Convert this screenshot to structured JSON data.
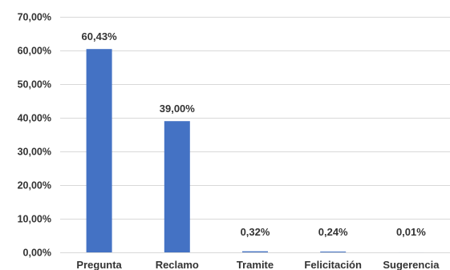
{
  "chart_data": {
    "type": "bar",
    "title": "",
    "xlabel": "",
    "ylabel": "",
    "categories": [
      "Pregunta",
      "Reclamo",
      "Tramite",
      "Felicitación",
      "Sugerencia"
    ],
    "values": [
      60.43,
      39.0,
      0.32,
      0.24,
      0.01
    ],
    "data_labels": [
      "60,43%",
      "39,00%",
      "0,32%",
      "0,24%",
      "0,01%"
    ],
    "ylim": [
      0,
      70
    ],
    "yticks": [
      0,
      10,
      20,
      30,
      40,
      50,
      60,
      70
    ],
    "ytick_labels": [
      "0,00%",
      "10,00%",
      "20,00%",
      "30,00%",
      "40,00%",
      "50,00%",
      "60,00%",
      "70,00%"
    ],
    "grid": true,
    "legend": "none",
    "colors": {
      "bar": "#4472C4",
      "grid": "#D9D9D9",
      "text": "#333333"
    }
  }
}
